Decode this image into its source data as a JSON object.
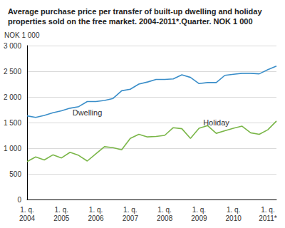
{
  "chart_data": {
    "type": "line",
    "title": "Average purchase price per transfer of built-up dwelling and holiday properties sold on the free market. 2004-2011*.Quarter. NOK 1 000",
    "y_label": "NOK 1 000",
    "categories": [
      "1. q.\n2004",
      null,
      null,
      null,
      "1. q.\n2005",
      null,
      null,
      null,
      "1. q.\n2006",
      null,
      null,
      null,
      "1. q.\n2007",
      null,
      null,
      null,
      "1. q.\n2008",
      null,
      null,
      null,
      "1. q.\n2009",
      null,
      null,
      null,
      "1. q.\n2010",
      null,
      null,
      null,
      "1. q.\n2011*",
      null
    ],
    "series": [
      {
        "name": "Dwelling",
        "color": "#3a8ec9",
        "values": [
          1630,
          1600,
          1640,
          1690,
          1730,
          1780,
          1810,
          1910,
          1910,
          1930,
          1970,
          2120,
          2150,
          2250,
          2290,
          2340,
          2340,
          2350,
          2430,
          2380,
          2260,
          2280,
          2280,
          2420,
          2440,
          2460,
          2460,
          2450,
          2530,
          2600
        ]
      },
      {
        "name": "Holiday",
        "color": "#7ab648",
        "values": [
          740,
          830,
          770,
          870,
          810,
          920,
          860,
          750,
          890,
          1030,
          1010,
          970,
          1190,
          1270,
          1220,
          1230,
          1250,
          1400,
          1380,
          1190,
          1390,
          1440,
          1290,
          1340,
          1390,
          1430,
          1300,
          1270,
          1360,
          1530
        ]
      }
    ],
    "ylim": [
      0,
      3000
    ],
    "yticks": [
      0,
      500,
      {
        "value": 1000,
        "label": "1 000"
      },
      {
        "value": 1500,
        "label": "1 500"
      },
      {
        "value": 2000,
        "label": "2 000"
      },
      {
        "value": 2500,
        "label": "2 500"
      },
      {
        "value": 3000,
        "label": "3 000"
      }
    ],
    "grid": true
  }
}
